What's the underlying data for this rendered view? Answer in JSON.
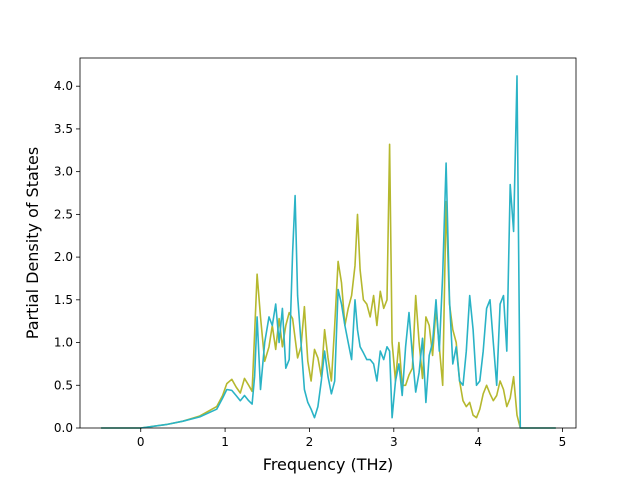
{
  "chart_data": {
    "type": "line",
    "title": "",
    "xlabel": "Frequency (THz)",
    "ylabel": "Partial Density of States",
    "xlim": [
      -0.72,
      5.16
    ],
    "ylim": [
      0.0,
      4.33
    ],
    "xticks": [
      0,
      1,
      2,
      3,
      4,
      5
    ],
    "yticks": [
      0.0,
      0.5,
      1.0,
      1.5,
      2.0,
      2.5,
      3.0,
      3.5,
      4.0
    ],
    "xtick_labels": [
      "0",
      "1",
      "2",
      "3",
      "4",
      "5"
    ],
    "ytick_labels": [
      "0.0",
      "0.5",
      "1.0",
      "1.5",
      "2.0",
      "2.5",
      "3.0",
      "3.5",
      "4.0"
    ],
    "grid": false,
    "legend": "none",
    "series": [
      {
        "color": "#b5b82e",
        "x": [
          -0.47,
          0.0,
          0.3,
          0.5,
          0.7,
          0.9,
          0.97,
          1.02,
          1.08,
          1.13,
          1.18,
          1.23,
          1.28,
          1.32,
          1.35,
          1.38,
          1.42,
          1.47,
          1.52,
          1.56,
          1.6,
          1.64,
          1.68,
          1.72,
          1.76,
          1.8,
          1.83,
          1.86,
          1.9,
          1.94,
          1.98,
          2.02,
          2.06,
          2.1,
          2.14,
          2.18,
          2.22,
          2.26,
          2.3,
          2.34,
          2.38,
          2.42,
          2.46,
          2.5,
          2.54,
          2.57,
          2.6,
          2.64,
          2.68,
          2.72,
          2.76,
          2.8,
          2.84,
          2.88,
          2.92,
          2.95,
          2.98,
          3.02,
          3.06,
          3.1,
          3.14,
          3.18,
          3.22,
          3.26,
          3.3,
          3.34,
          3.38,
          3.42,
          3.46,
          3.5,
          3.54,
          3.58,
          3.62,
          3.66,
          3.7,
          3.74,
          3.78,
          3.82,
          3.86,
          3.9,
          3.94,
          3.98,
          4.02,
          4.06,
          4.1,
          4.14,
          4.18,
          4.22,
          4.26,
          4.3,
          4.34,
          4.38,
          4.42,
          4.46,
          4.5,
          4.55,
          4.92
        ],
        "y": [
          0.0,
          0.0,
          0.04,
          0.08,
          0.14,
          0.25,
          0.38,
          0.52,
          0.57,
          0.48,
          0.41,
          0.58,
          0.5,
          0.43,
          1.1,
          1.8,
          1.3,
          0.78,
          0.95,
          1.2,
          0.92,
          1.28,
          0.95,
          1.2,
          1.35,
          1.28,
          1.05,
          0.82,
          0.95,
          1.42,
          0.78,
          0.55,
          0.92,
          0.82,
          0.6,
          1.15,
          0.82,
          0.55,
          1.2,
          1.95,
          1.7,
          1.2,
          1.4,
          1.55,
          1.9,
          2.5,
          1.85,
          1.5,
          1.45,
          1.3,
          1.55,
          1.2,
          1.6,
          1.4,
          1.5,
          3.32,
          1.0,
          0.55,
          1.0,
          0.5,
          0.5,
          0.62,
          0.7,
          1.55,
          1.0,
          0.58,
          1.3,
          1.2,
          0.85,
          1.4,
          0.95,
          0.5,
          2.65,
          1.45,
          1.15,
          1.0,
          0.55,
          0.32,
          0.25,
          0.3,
          0.15,
          0.12,
          0.22,
          0.4,
          0.5,
          0.4,
          0.32,
          0.38,
          0.55,
          0.45,
          0.25,
          0.35,
          0.6,
          0.15,
          0.0,
          0.0,
          0.0
        ]
      },
      {
        "color": "#2ab3c6",
        "x": [
          -0.47,
          0.0,
          0.3,
          0.5,
          0.7,
          0.9,
          0.97,
          1.02,
          1.08,
          1.13,
          1.18,
          1.23,
          1.28,
          1.32,
          1.35,
          1.38,
          1.42,
          1.47,
          1.52,
          1.56,
          1.6,
          1.64,
          1.68,
          1.72,
          1.76,
          1.8,
          1.83,
          1.86,
          1.9,
          1.94,
          1.98,
          2.02,
          2.06,
          2.1,
          2.14,
          2.18,
          2.22,
          2.26,
          2.3,
          2.34,
          2.38,
          2.42,
          2.46,
          2.5,
          2.54,
          2.57,
          2.6,
          2.64,
          2.68,
          2.72,
          2.76,
          2.8,
          2.84,
          2.88,
          2.92,
          2.95,
          2.98,
          3.02,
          3.06,
          3.1,
          3.14,
          3.18,
          3.22,
          3.26,
          3.3,
          3.34,
          3.38,
          3.42,
          3.46,
          3.5,
          3.54,
          3.58,
          3.62,
          3.66,
          3.7,
          3.74,
          3.78,
          3.82,
          3.86,
          3.9,
          3.94,
          3.98,
          4.02,
          4.06,
          4.1,
          4.14,
          4.18,
          4.22,
          4.26,
          4.3,
          4.34,
          4.38,
          4.42,
          4.46,
          4.5,
          4.55,
          4.92
        ],
        "y": [
          0.0,
          0.0,
          0.04,
          0.08,
          0.13,
          0.22,
          0.35,
          0.45,
          0.44,
          0.38,
          0.32,
          0.38,
          0.32,
          0.28,
          0.6,
          1.3,
          0.45,
          1.0,
          1.3,
          1.2,
          1.45,
          1.0,
          1.4,
          0.7,
          0.8,
          2.05,
          2.72,
          1.55,
          1.0,
          0.45,
          0.3,
          0.22,
          0.12,
          0.25,
          0.55,
          0.9,
          0.6,
          0.4,
          0.55,
          1.62,
          1.45,
          1.2,
          1.0,
          0.8,
          1.5,
          1.15,
          0.95,
          0.88,
          0.8,
          0.8,
          0.75,
          0.55,
          0.9,
          0.8,
          0.95,
          0.9,
          0.12,
          0.55,
          0.75,
          0.38,
          0.95,
          1.35,
          0.85,
          0.42,
          0.65,
          1.05,
          0.3,
          0.85,
          1.0,
          1.5,
          0.9,
          1.8,
          3.1,
          1.5,
          0.75,
          0.95,
          0.55,
          0.5,
          0.9,
          1.55,
          1.15,
          0.5,
          0.55,
          0.9,
          1.4,
          1.5,
          1.0,
          0.5,
          1.45,
          1.55,
          0.9,
          2.85,
          2.3,
          4.12,
          0.0,
          0.0,
          0.0
        ]
      }
    ]
  }
}
